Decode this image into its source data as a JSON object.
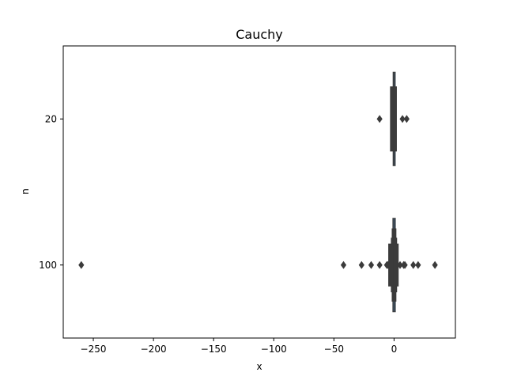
{
  "chart_data": {
    "type": "boxen",
    "title": "Cauchy",
    "xlabel": "x",
    "ylabel": "n",
    "xlim": [
      -275,
      51
    ],
    "xticks": [
      -250,
      -200,
      -150,
      -100,
      -50,
      0
    ],
    "xtick_labels": [
      "−250",
      "−200",
      "−150",
      "−100",
      "−50",
      "0"
    ],
    "categories": [
      "20",
      "100"
    ],
    "grid": false,
    "colors": {
      "box_dark": "#3b3b3b",
      "box_accent": "#3a78b0",
      "outlier": "#3b3b3b"
    },
    "groups": [
      {
        "category": "20",
        "levels": [
          {
            "low": -0.8,
            "high": 1.0,
            "width_frac": 0.8
          },
          {
            "low": -3.0,
            "high": 2.0,
            "width_frac": 0.55
          }
        ],
        "median": 0.0,
        "outliers": [
          -12,
          7,
          10.5
        ]
      },
      {
        "category": "100",
        "levels": [
          {
            "low": -1.0,
            "high": 1.1,
            "width_frac": 0.8
          },
          {
            "low": -1.6,
            "high": 1.6,
            "width_frac": 0.62
          },
          {
            "low": -2.3,
            "high": 2.2,
            "width_frac": 0.46
          },
          {
            "low": -4.5,
            "high": 3.5,
            "width_frac": 0.36
          }
        ],
        "median": 0.0,
        "outliers": [
          -260,
          -42,
          -27,
          -19,
          -12,
          -6,
          -5,
          5,
          8,
          9,
          16,
          20,
          34
        ]
      }
    ]
  }
}
